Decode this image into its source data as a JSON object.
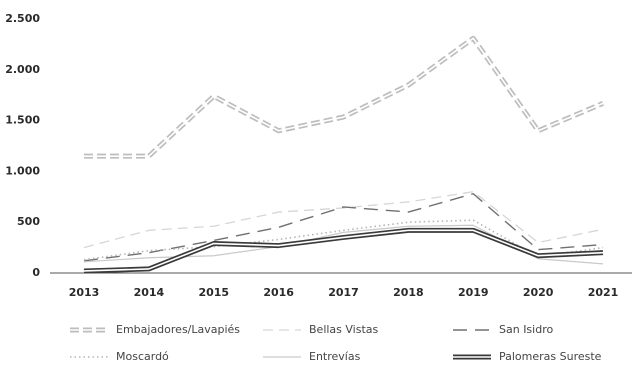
{
  "chart_data": {
    "type": "line",
    "categories": [
      "2013",
      "2014",
      "2015",
      "2016",
      "2017",
      "2018",
      "2019",
      "2020",
      "2021"
    ],
    "ylim": [
      0,
      2500
    ],
    "yticks": [
      0,
      500,
      {
        "value": 1000,
        "label": "1.000"
      },
      {
        "value": 1500,
        "label": "1.500"
      },
      {
        "value": 2000,
        "label": "2.000"
      },
      {
        "value": 2500,
        "label": "2.500"
      }
    ],
    "grid": false,
    "series": [
      {
        "name": "Embajadores/Lavapiés",
        "color": "#bdbdbd",
        "line_style": "double-dashed",
        "values": [
          1150,
          1150,
          1740,
          1400,
          1535,
          1850,
          2310,
          1400,
          1670
        ]
      },
      {
        "name": "Bellas Vistas",
        "color": "#d6d6d6",
        "line_style": "dashed",
        "values": [
          250,
          420,
          460,
          600,
          640,
          700,
          800,
          300,
          430
        ]
      },
      {
        "name": "San Isidro",
        "color": "#707070",
        "line_style": "long-dashed",
        "values": [
          120,
          200,
          320,
          450,
          650,
          600,
          780,
          230,
          280
        ]
      },
      {
        "name": "Moscardó",
        "color": "#b5b5b5",
        "line_style": "dotted",
        "values": [
          130,
          220,
          260,
          330,
          420,
          500,
          520,
          160,
          250
        ]
      },
      {
        "name": "Entrevías",
        "color": "#c9c9c9",
        "line_style": "solid",
        "values": [
          110,
          150,
          170,
          260,
          400,
          460,
          470,
          140,
          90
        ]
      },
      {
        "name": "Palomeras Sureste",
        "color": "#3a3a3a",
        "line_style": "double-solid",
        "values": [
          20,
          40,
          290,
          270,
          350,
          420,
          420,
          170,
          200
        ]
      }
    ]
  }
}
